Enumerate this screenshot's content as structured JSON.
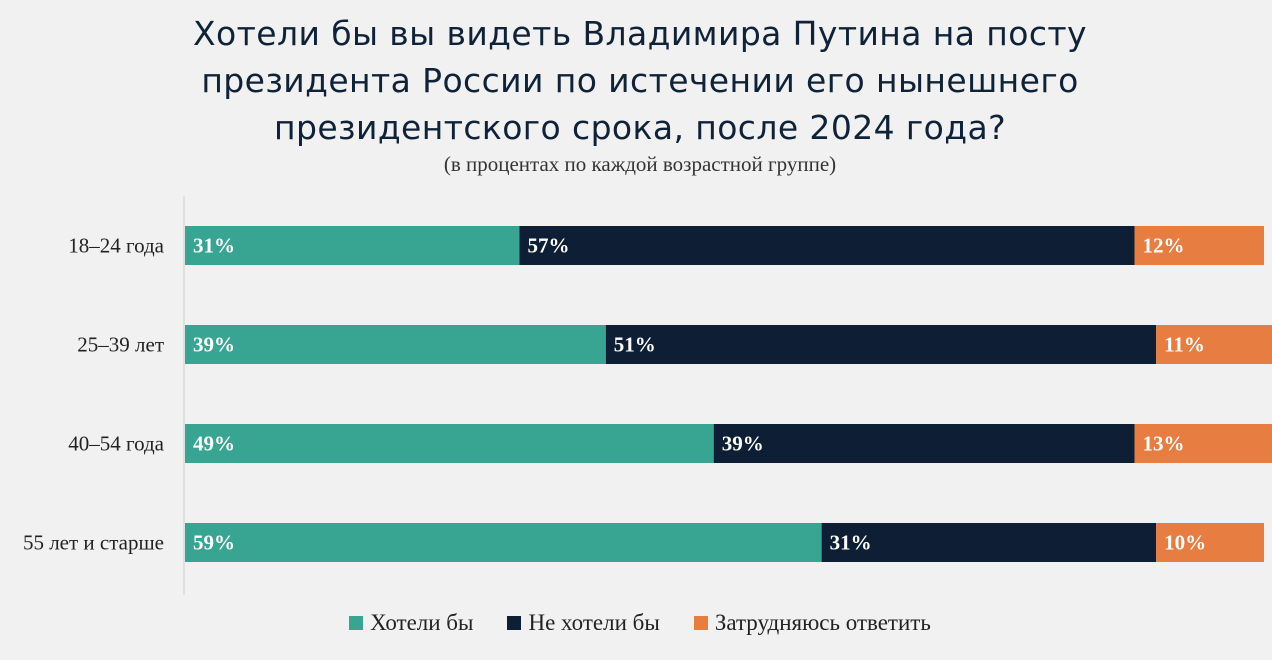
{
  "colors": {
    "yes": "#37a592",
    "no": "#0e1f35",
    "unsure": "#e77d40",
    "axis": "#cfcfcf"
  },
  "chart_data": {
    "type": "bar",
    "orientation": "horizontal",
    "stacked": true,
    "title": "Хотели бы вы видеть Владимира Путина на посту\nпрезидента России по истечении его нынешнего\nпрезидентского срока, после 2024 года?",
    "subtitle": "(в процентах по каждой возрастной группе)",
    "xlim": [
      0,
      100
    ],
    "legend_position": "bottom",
    "categories": [
      "18–24 года",
      "25–39 лет",
      "40–54 года",
      "55 лет и старше"
    ],
    "series": [
      {
        "name": "Хотели бы",
        "color_key": "yes",
        "values": [
          31,
          39,
          49,
          59
        ],
        "labels": [
          "31%",
          "39%",
          "49%",
          "59%"
        ]
      },
      {
        "name": "Не хотели бы",
        "color_key": "no",
        "values": [
          57,
          51,
          39,
          31
        ],
        "labels": [
          "57%",
          "51%",
          "39%",
          "31%"
        ]
      },
      {
        "name": "Затрудняюсь ответить",
        "color_key": "unsure",
        "values": [
          12,
          11,
          13,
          10
        ],
        "labels": [
          "12%",
          "11%",
          "13%",
          "10%"
        ]
      }
    ]
  }
}
